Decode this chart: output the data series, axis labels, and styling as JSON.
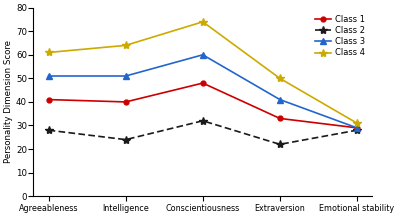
{
  "categories": [
    "Agreeableness",
    "Intelligence",
    "Conscientiousness",
    "Extraversion",
    "Emotional stability"
  ],
  "class1": [
    41,
    40,
    48,
    33,
    29
  ],
  "class2": [
    28,
    24,
    32,
    22,
    28
  ],
  "class3": [
    51,
    51,
    60,
    41,
    29
  ],
  "class4": [
    61,
    64,
    74,
    50,
    31
  ],
  "class1_color": "#cc0000",
  "class2_color": "#1a1a1a",
  "class3_color": "#2266cc",
  "class4_color": "#ccaa00",
  "ylabel": "Personality Dimension Score",
  "ylim": [
    0,
    80
  ],
  "yticks": [
    0,
    10,
    20,
    30,
    40,
    50,
    60,
    70,
    80
  ],
  "legend_labels": [
    "Class 1",
    "Class 2",
    "Class 3",
    "Class 4"
  ],
  "figsize": [
    4.0,
    2.17
  ],
  "dpi": 100
}
